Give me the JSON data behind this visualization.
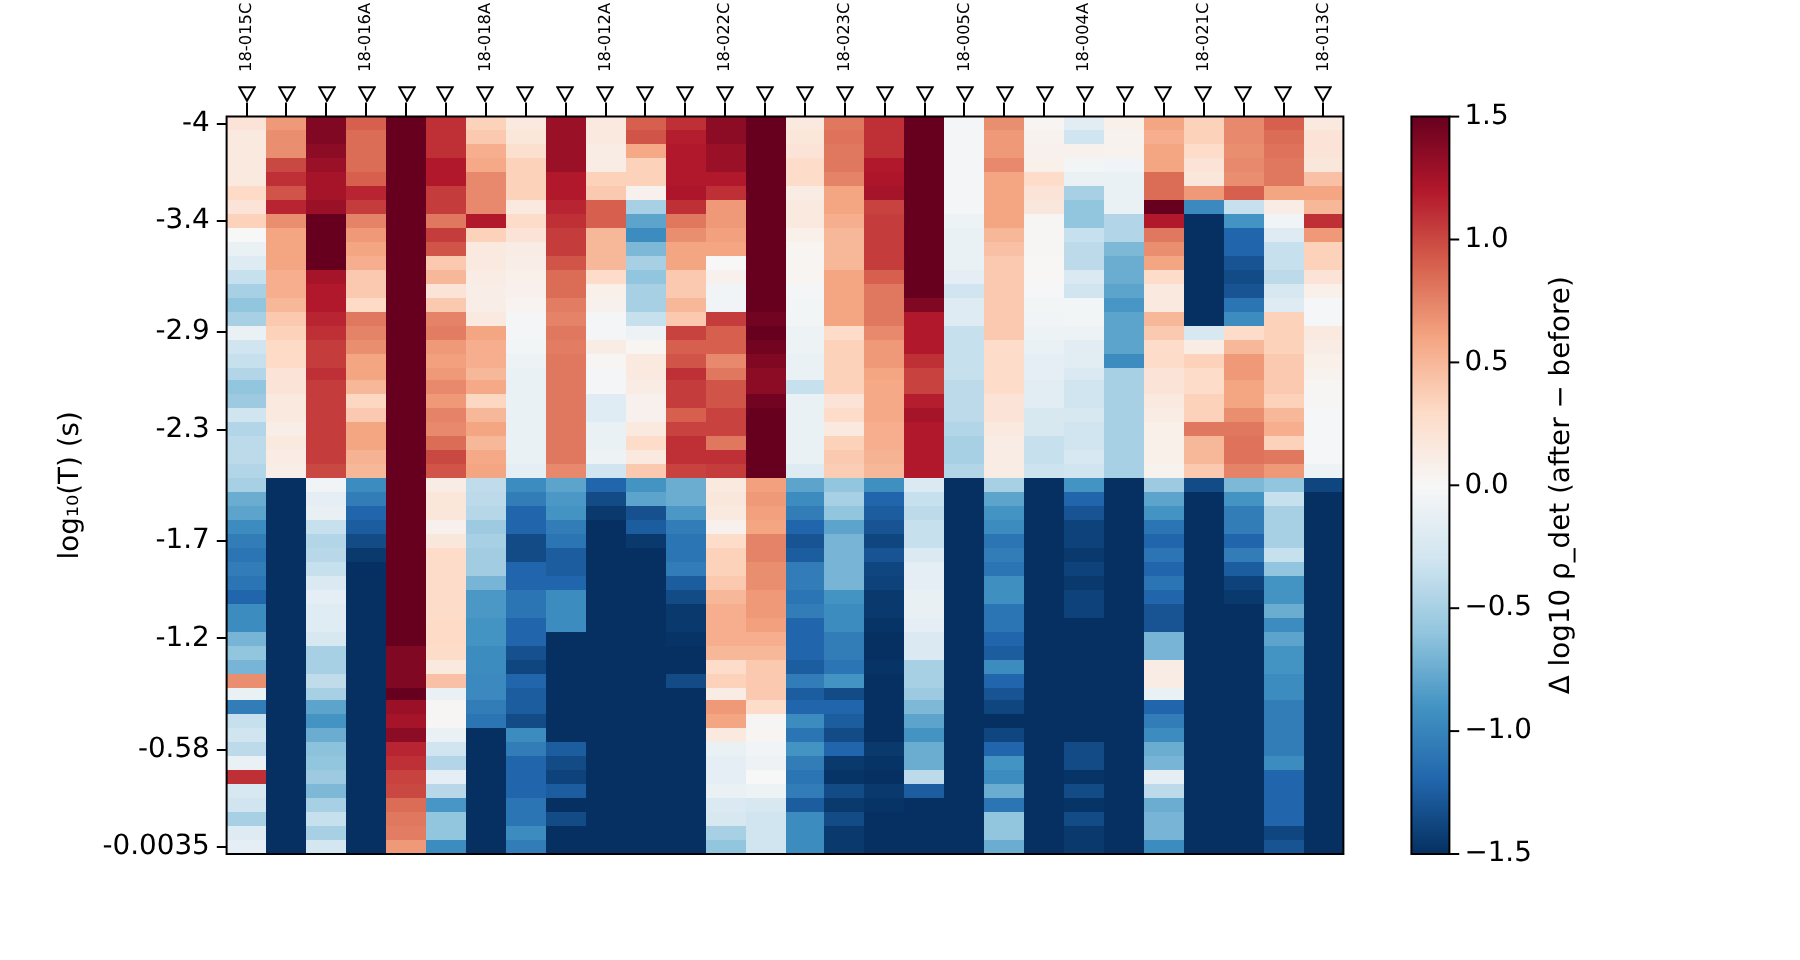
{
  "chart_data": {
    "type": "heatmap",
    "ylabel": "log₁₀(T) (s)",
    "clabel": "Δ log10 ρ_det (after − before)",
    "categories": [
      "18-015C",
      null,
      null,
      "18-016A",
      null,
      null,
      "18-018A",
      null,
      null,
      "18-012A",
      null,
      null,
      "18-022C",
      null,
      null,
      "18-023C",
      null,
      null,
      "18-005C",
      null,
      null,
      "18-004A",
      null,
      null,
      "18-021C",
      null,
      null,
      "18-013C"
    ],
    "y_categories": [
      "-4",
      null,
      null,
      null,
      null,
      null,
      null,
      "-3.4",
      null,
      null,
      null,
      null,
      null,
      null,
      null,
      "-2.9",
      null,
      null,
      null,
      null,
      null,
      null,
      "-2.3",
      null,
      null,
      null,
      null,
      null,
      null,
      null,
      "-1.7",
      null,
      null,
      null,
      null,
      null,
      null,
      "-1.2",
      null,
      null,
      null,
      null,
      null,
      null,
      null,
      "-0.58",
      null,
      null,
      null,
      null,
      null,
      null,
      "-0.0035"
    ],
    "clim": [
      -1.5,
      1.5
    ],
    "cticks": [
      {
        "value": -1.5,
        "label": "−1.5"
      },
      {
        "value": -1,
        "label": "−1.0"
      },
      {
        "value": -0.5,
        "label": "−0.5"
      },
      {
        "value": 0,
        "label": "0.0"
      },
      {
        "value": 0.5,
        "label": "0.5"
      },
      {
        "value": 1,
        "label": "1.0"
      },
      {
        "value": 1.5,
        "label": "1.5"
      }
    ],
    "cells": [
      [
        0.2,
        0.65,
        1.4,
        0.9,
        1.5,
        1.1,
        0.35,
        0.15,
        1.3,
        0.15,
        0.9,
        1.1,
        1.35,
        1.5,
        0.15,
        0.8,
        1.1,
        1.5,
        -0.03,
        0.7,
        0.03,
        -0.17,
        0.08,
        0.6,
        0.35,
        0.72,
        0.9,
        0.15
      ],
      [
        0.15,
        0.7,
        1.4,
        0.85,
        1.5,
        1.1,
        0.4,
        0.18,
        1.3,
        0.15,
        0.95,
        1.18,
        1.35,
        1.5,
        0.18,
        0.82,
        1.1,
        1.5,
        -0.03,
        0.65,
        0.05,
        -0.3,
        0.05,
        0.55,
        0.35,
        0.72,
        0.85,
        0.2
      ],
      [
        0.15,
        0.7,
        1.35,
        0.85,
        1.5,
        1.1,
        0.55,
        0.25,
        1.3,
        0.12,
        0.58,
        1.2,
        1.3,
        1.5,
        0.2,
        0.8,
        1.1,
        1.5,
        -0.03,
        0.65,
        0.07,
        0.07,
        0.05,
        0.6,
        0.28,
        0.7,
        0.82,
        0.2
      ],
      [
        0.15,
        1.0,
        1.3,
        0.85,
        1.5,
        1.2,
        0.58,
        0.35,
        1.3,
        0.12,
        0.35,
        1.2,
        1.3,
        1.5,
        0.28,
        0.8,
        1.2,
        1.5,
        -0.03,
        0.72,
        0.08,
        -0.04,
        -0.05,
        0.6,
        0.2,
        0.72,
        0.8,
        0.17
      ],
      [
        0.15,
        1.1,
        1.25,
        0.9,
        1.5,
        1.2,
        0.72,
        0.35,
        1.2,
        0.35,
        0.35,
        1.2,
        1.2,
        1.5,
        0.28,
        0.75,
        1.22,
        1.5,
        -0.03,
        0.6,
        0.28,
        -0.1,
        -0.1,
        0.85,
        0.17,
        0.7,
        0.8,
        0.45
      ],
      [
        0.3,
        0.95,
        1.25,
        1.15,
        1.5,
        1.05,
        0.72,
        0.35,
        1.2,
        0.4,
        0.07,
        1.22,
        1.1,
        1.5,
        0.12,
        0.6,
        1.25,
        1.5,
        -0.03,
        0.6,
        0.2,
        -0.5,
        -0.1,
        0.85,
        0.65,
        0.9,
        0.6,
        0.6
      ],
      [
        0.2,
        1.15,
        1.3,
        1.05,
        1.5,
        1.05,
        0.72,
        0.15,
        1.15,
        0.9,
        -0.5,
        1.1,
        0.65,
        1.5,
        0.15,
        0.6,
        1.02,
        1.5,
        -0.03,
        0.6,
        0.17,
        -0.6,
        -0.1,
        1.5,
        -0.97,
        -0.35,
        0.12,
        0.5
      ],
      [
        0.35,
        0.7,
        1.5,
        0.75,
        1.5,
        0.8,
        1.2,
        0.28,
        1.1,
        0.9,
        -0.8,
        0.8,
        0.65,
        1.5,
        0.15,
        0.55,
        1.05,
        1.5,
        -0.08,
        0.6,
        0.02,
        -0.6,
        -0.45,
        1.2,
        -1.5,
        -0.9,
        -0.05,
        1.1
      ],
      [
        0,
        0.6,
        1.5,
        0.65,
        1.5,
        1.05,
        0.35,
        0.2,
        1.05,
        0.5,
        -0.95,
        0.7,
        0.62,
        1.5,
        0.08,
        0.5,
        1.05,
        1.5,
        -0.1,
        0.5,
        0.02,
        -0.35,
        -0.45,
        0.8,
        -1.5,
        -1.2,
        -0.2,
        0.65
      ],
      [
        -0.1,
        0.6,
        1.5,
        0.6,
        1.5,
        0.95,
        0.15,
        0.12,
        1.05,
        0.5,
        -0.68,
        0.6,
        0.6,
        1.5,
        0.03,
        0.5,
        1.05,
        1.5,
        -0.1,
        0.45,
        0.02,
        -0.4,
        -0.68,
        0.7,
        -1.5,
        -1.2,
        -0.35,
        0.35
      ],
      [
        -0.2,
        0.6,
        1.5,
        0.55,
        1.5,
        0.4,
        0.15,
        0.1,
        0.95,
        0.5,
        -0.5,
        0.6,
        0,
        1.5,
        0.03,
        0.5,
        1.05,
        1.5,
        -0.1,
        0.4,
        0.01,
        -0.4,
        -0.75,
        0.6,
        -1.5,
        -1.3,
        -0.35,
        0.35
      ],
      [
        -0.35,
        0.55,
        1.25,
        0.4,
        1.5,
        0.5,
        0.12,
        0.08,
        0.85,
        0.28,
        -0.6,
        0.4,
        0.07,
        1.5,
        0.03,
        0.6,
        0.9,
        1.5,
        -0.15,
        0.4,
        0.01,
        -0.22,
        -0.75,
        0.28,
        -1.5,
        -1.35,
        -0.4,
        0.2
      ],
      [
        -0.5,
        0.55,
        1.2,
        0.4,
        1.5,
        0.2,
        0.1,
        0.07,
        0.85,
        0.08,
        -0.5,
        0.4,
        -0.05,
        1.5,
        -0.03,
        0.6,
        0.8,
        1.5,
        -0.3,
        0.4,
        -0.02,
        -0.3,
        -0.8,
        0.15,
        -1.5,
        -1.3,
        -0.25,
        0.08
      ],
      [
        -0.6,
        0.5,
        1.2,
        0.3,
        1.5,
        0.4,
        0.1,
        0.04,
        0.78,
        0.07,
        -0.5,
        0.5,
        -0.05,
        1.5,
        -0.04,
        0.6,
        0.8,
        1.4,
        -0.2,
        0.4,
        -0.04,
        -0.04,
        -0.88,
        0.15,
        -1.5,
        -1.1,
        -0.2,
        -0.02
      ],
      [
        -0.5,
        0.4,
        1.15,
        0.8,
        1.5,
        0.75,
        0.15,
        -0.03,
        0.75,
        -0.03,
        -0.35,
        0.4,
        1.05,
        1.45,
        -0.04,
        0.6,
        0.8,
        1.2,
        -0.2,
        0.4,
        -0.05,
        -0.04,
        -0.8,
        0.5,
        -1.5,
        -0.95,
        0.35,
        -0.02
      ],
      [
        -0.1,
        0.35,
        1.1,
        0.75,
        1.5,
        0.78,
        0.6,
        -0.03,
        0.8,
        -0.03,
        -0.08,
        1.02,
        0.9,
        1.5,
        -0.08,
        0.28,
        0.72,
        1.2,
        -0.35,
        0.4,
        -0.08,
        -0.08,
        -0.8,
        0.4,
        -0.25,
        0.28,
        0.35,
        0.15
      ],
      [
        -0.3,
        0.3,
        1.05,
        0.7,
        1.5,
        0.65,
        0.55,
        -0.04,
        0.78,
        0.12,
        0.03,
        0.9,
        0.9,
        1.45,
        -0.08,
        0.35,
        0.65,
        1.2,
        -0.35,
        0.28,
        -0.1,
        -0.17,
        -0.8,
        0.28,
        0.12,
        0.5,
        0.35,
        0.12
      ],
      [
        -0.35,
        0.3,
        1.05,
        0.6,
        1.5,
        0.62,
        0.55,
        -0.08,
        0.8,
        0.02,
        0.15,
        0.95,
        0.72,
        1.4,
        -0.1,
        0.35,
        0.65,
        1.1,
        -0.35,
        0.28,
        -0.15,
        -0.17,
        -0.95,
        0.28,
        0.35,
        0.65,
        0.4,
        0.08
      ],
      [
        -0.45,
        0.2,
        1.1,
        0.6,
        1.5,
        0.65,
        0.5,
        -0.1,
        0.8,
        -0.03,
        0.15,
        1.1,
        0.8,
        1.35,
        -0.1,
        0.35,
        0.6,
        1.02,
        -0.35,
        0.28,
        -0.15,
        -0.22,
        -0.5,
        0.2,
        0.28,
        0.65,
        0.4,
        0.05
      ],
      [
        -0.6,
        0.2,
        1.05,
        0.5,
        1.5,
        0.72,
        0.58,
        -0.1,
        0.8,
        -0.03,
        0.12,
        1.05,
        0.95,
        1.35,
        -0.35,
        0.35,
        0.58,
        1.02,
        -0.4,
        0.28,
        -0.17,
        -0.3,
        -0.5,
        0.2,
        0.28,
        0.6,
        0.4,
        0.02
      ],
      [
        -0.55,
        0.15,
        1.05,
        0.32,
        1.5,
        0.65,
        0.32,
        -0.1,
        0.8,
        -0.18,
        0.07,
        1.05,
        0.95,
        1.45,
        -0.1,
        0.2,
        0.58,
        1.18,
        -0.4,
        0.2,
        -0.17,
        -0.3,
        -0.5,
        0.15,
        0.35,
        0.6,
        0.35,
        0.02
      ],
      [
        -0.3,
        0.15,
        1.05,
        0.4,
        1.5,
        0.75,
        0.5,
        -0.1,
        0.8,
        -0.18,
        0.07,
        0.9,
        1.02,
        1.5,
        -0.1,
        0.28,
        0.58,
        1.25,
        -0.4,
        0.2,
        -0.25,
        -0.25,
        -0.5,
        0.12,
        0.35,
        0.7,
        0.5,
        -0.02
      ],
      [
        -0.45,
        0.1,
        1.05,
        0.6,
        1.5,
        0.72,
        0.6,
        -0.1,
        0.8,
        -0.1,
        0.15,
        1.02,
        1.02,
        1.5,
        -0.1,
        0.15,
        0.55,
        1.2,
        -0.45,
        0.15,
        -0.25,
        -0.3,
        -0.5,
        0.08,
        0.8,
        0.8,
        0.55,
        -0.02
      ],
      [
        -0.4,
        0.15,
        1.05,
        0.6,
        1.5,
        0.85,
        0.5,
        -0.1,
        0.8,
        -0.1,
        0.28,
        1.1,
        0.8,
        1.5,
        -0.1,
        0.35,
        0.55,
        1.2,
        -0.5,
        0.12,
        -0.35,
        -0.3,
        -0.5,
        0.08,
        0.5,
        0.82,
        0.35,
        -0.02
      ],
      [
        -0.4,
        0.12,
        1.05,
        0.52,
        1.5,
        1.0,
        0.58,
        -0.1,
        0.8,
        -0.08,
        0.15,
        1.1,
        1.1,
        1.5,
        -0.1,
        0.4,
        0.52,
        1.2,
        -0.5,
        0.12,
        -0.35,
        -0.25,
        -0.5,
        0.08,
        0.5,
        0.82,
        0.8,
        -0.02
      ],
      [
        -0.45,
        0.1,
        1.0,
        0.5,
        1.5,
        0.95,
        0.6,
        -0.15,
        0.72,
        -0.3,
        0.4,
        1.02,
        1.05,
        1.5,
        -0.2,
        0.38,
        0.5,
        1.2,
        -0.45,
        0.12,
        -0.32,
        -0.3,
        -0.5,
        0.05,
        0.4,
        0.75,
        0.65,
        -0.08
      ],
      [
        -0.5,
        -1.5,
        -0.05,
        -0.95,
        1.5,
        0.12,
        -0.38,
        -0.95,
        -0.8,
        -1.2,
        -0.9,
        -0.75,
        0.15,
        0.62,
        -0.8,
        -0.6,
        -0.93,
        -0.22,
        -1.5,
        -0.5,
        -1.5,
        -0.9,
        -1.5,
        -0.55,
        -1.35,
        -0.68,
        -0.6,
        -1.38
      ],
      [
        -0.75,
        -1.5,
        -0.15,
        -1.05,
        1.5,
        0.18,
        -0.4,
        -1.05,
        -0.87,
        -1.35,
        -0.8,
        -0.75,
        0.17,
        0.65,
        -0.95,
        -0.5,
        -1.2,
        -0.35,
        -1.5,
        -0.8,
        -1.5,
        -1.2,
        -1.5,
        -0.8,
        -1.5,
        -0.9,
        -0.35,
        -1.5
      ],
      [
        -0.8,
        -1.5,
        -0.12,
        -1.2,
        1.5,
        0.18,
        -0.43,
        -1.2,
        -0.9,
        -1.45,
        -1.32,
        -0.87,
        0.15,
        0.62,
        -1.05,
        -0.6,
        -1.25,
        -0.4,
        -1.5,
        -0.9,
        -1.5,
        -1.3,
        -1.5,
        -0.9,
        -1.5,
        -1.05,
        -0.5,
        -1.5
      ],
      [
        -0.95,
        -1.5,
        -0.35,
        -1.25,
        1.5,
        0.07,
        -0.55,
        -1.2,
        -1.05,
        -1.5,
        -1.25,
        -1.05,
        0.07,
        0.6,
        -1.2,
        -0.8,
        -1.3,
        -0.35,
        -1.5,
        -0.95,
        -1.5,
        -1.4,
        -1.5,
        -1.1,
        -1.5,
        -1.05,
        -0.5,
        -1.5
      ],
      [
        -1.05,
        -1.5,
        -0.45,
        -1.35,
        1.5,
        0.17,
        -0.5,
        -1.35,
        -1.1,
        -1.5,
        -1.45,
        -1.1,
        0.28,
        0.75,
        -1.3,
        -0.7,
        -1.38,
        -0.35,
        -1.5,
        -1.1,
        -1.5,
        -1.4,
        -1.5,
        -1.2,
        -1.5,
        -1.2,
        -0.5,
        -1.5
      ],
      [
        -1.1,
        -1.5,
        -0.42,
        -1.45,
        1.5,
        0.28,
        -0.53,
        -1.35,
        -1.25,
        -1.5,
        -1.5,
        -1.1,
        0.35,
        0.75,
        -1.25,
        -0.7,
        -1.3,
        -0.22,
        -1.5,
        -1.05,
        -1.5,
        -1.45,
        -1.5,
        -1.1,
        -1.5,
        -1.05,
        -0.35,
        -1.5
      ],
      [
        -1.05,
        -1.5,
        -0.35,
        -1.5,
        1.5,
        0.28,
        -0.53,
        -1.2,
        -1.25,
        -1.5,
        -1.5,
        -1.05,
        0.35,
        0.7,
        -1.05,
        -0.7,
        -1.38,
        -0.15,
        -1.5,
        -1.1,
        -1.5,
        -1.4,
        -1.5,
        -1.2,
        -1.5,
        -1.25,
        -0.6,
        -1.5
      ],
      [
        -1.1,
        -1.5,
        -0.22,
        -1.5,
        1.5,
        0.28,
        -0.7,
        -1.2,
        -1.2,
        -1.5,
        -1.5,
        -1.25,
        0.4,
        0.7,
        -1.05,
        -0.7,
        -1.4,
        -0.15,
        -1.5,
        -0.93,
        -1.5,
        -1.45,
        -1.5,
        -1.1,
        -1.5,
        -1.4,
        -0.9,
        -1.5
      ],
      [
        -1.2,
        -1.5,
        -0.15,
        -1.5,
        1.5,
        0.28,
        -0.87,
        -1.1,
        -0.95,
        -1.5,
        -1.5,
        -1.35,
        0.5,
        0.65,
        -1.1,
        -0.9,
        -1.45,
        -0.12,
        -1.5,
        -0.93,
        -1.5,
        -1.4,
        -1.5,
        -1.2,
        -1.5,
        -1.45,
        -0.9,
        -1.5
      ],
      [
        -0.95,
        -1.5,
        -0.18,
        -1.5,
        1.5,
        0.28,
        -0.87,
        -1.1,
        -0.95,
        -1.5,
        -1.5,
        -1.45,
        0.55,
        0.65,
        -1.05,
        -0.95,
        -1.45,
        -0.12,
        -1.5,
        -1.1,
        -1.5,
        -1.4,
        -1.5,
        -1.3,
        -1.5,
        -1.5,
        -0.75,
        -1.5
      ],
      [
        -0.95,
        -1.5,
        -0.18,
        -1.5,
        1.5,
        0.3,
        -0.9,
        -1.2,
        -0.95,
        -1.5,
        -1.5,
        -1.45,
        0.55,
        0.62,
        -1.2,
        -0.95,
        -1.48,
        -0.15,
        -1.5,
        -1.1,
        -1.5,
        -1.5,
        -1.5,
        -1.3,
        -1.5,
        -1.5,
        -0.95,
        -1.5
      ],
      [
        -0.7,
        -1.5,
        -0.25,
        -1.5,
        1.5,
        0.3,
        -0.9,
        -1.2,
        -1.5,
        -1.5,
        -1.5,
        -1.48,
        0.55,
        0.55,
        -1.2,
        -1.05,
        -1.5,
        -0.22,
        -1.5,
        -1.2,
        -1.5,
        -1.5,
        -1.5,
        -0.7,
        -1.5,
        -1.5,
        -0.8,
        -1.5
      ],
      [
        -0.6,
        -1.5,
        -0.5,
        -1.5,
        1.4,
        0.28,
        -0.95,
        -1.32,
        -1.5,
        -1.5,
        -1.5,
        -1.5,
        0.5,
        0.5,
        -1.2,
        -1.05,
        -1.5,
        -0.22,
        -1.5,
        -1.25,
        -1.5,
        -1.5,
        -1.5,
        -0.7,
        -1.5,
        -1.5,
        -0.9,
        -1.5
      ],
      [
        -0.7,
        -1.5,
        -0.5,
        -1.5,
        1.4,
        0.15,
        -0.95,
        -1.38,
        -1.5,
        -1.5,
        -1.5,
        -1.5,
        0.28,
        0.4,
        -1.25,
        -1.1,
        -1.48,
        -0.5,
        -1.5,
        -0.95,
        -1.5,
        -1.5,
        -1.5,
        0.12,
        -1.5,
        -1.5,
        -0.9,
        -1.5
      ],
      [
        0.7,
        -1.5,
        -0.38,
        -1.5,
        1.4,
        0.45,
        -0.97,
        -1.2,
        -1.5,
        -1.5,
        -1.5,
        -1.35,
        0.35,
        0.4,
        -1.05,
        -0.9,
        -1.5,
        -0.5,
        -1.5,
        -1.2,
        -1.5,
        -1.5,
        -1.5,
        0.12,
        -1.5,
        -1.5,
        -0.95,
        -1.5
      ],
      [
        -0.1,
        -1.5,
        -0.5,
        -1.5,
        1.5,
        -0.1,
        -0.97,
        -1.25,
        -1.5,
        -1.5,
        -1.5,
        -1.5,
        0.12,
        0.4,
        -1.25,
        -1.35,
        -1.5,
        -0.55,
        -1.5,
        -1.3,
        -1.5,
        -1.5,
        -1.5,
        -0.1,
        -1.5,
        -1.5,
        -0.95,
        -1.5
      ],
      [
        -1.05,
        -1.5,
        -0.8,
        -1.5,
        1.3,
        0.02,
        -1.05,
        -1.25,
        -1.5,
        -1.5,
        -1.5,
        -1.5,
        0.65,
        0.28,
        -1.2,
        -1.2,
        -1.5,
        -0.68,
        -1.5,
        -1.38,
        -1.5,
        -1.5,
        -1.5,
        -1.2,
        -1.5,
        -1.5,
        -1.05,
        -1.5
      ],
      [
        -0.35,
        -1.5,
        -0.9,
        -1.5,
        1.25,
        0.02,
        -1.1,
        -1.35,
        -1.5,
        -1.5,
        -1.5,
        -1.5,
        0.6,
        0.02,
        -0.95,
        -1.25,
        -1.5,
        -0.8,
        -1.5,
        -1.5,
        -1.5,
        -1.5,
        -1.5,
        -1.05,
        -1.5,
        -1.5,
        -1.05,
        -1.5
      ],
      [
        -0.3,
        -1.5,
        -0.75,
        -1.5,
        1.35,
        -0.1,
        -1.5,
        -0.95,
        -1.5,
        -1.5,
        -1.5,
        -1.5,
        0.15,
        0.03,
        -1.1,
        -1.35,
        -1.5,
        -0.9,
        -1.5,
        -1.38,
        -1.5,
        -1.5,
        -1.5,
        -0.95,
        -1.5,
        -1.5,
        -1.05,
        -1.5
      ],
      [
        -0.4,
        -1.5,
        -0.62,
        -1.5,
        1.15,
        -0.3,
        -1.5,
        -1.05,
        -1.25,
        -1.5,
        -1.5,
        -1.5,
        -0.1,
        -0.05,
        -0.9,
        -1.2,
        -1.45,
        -0.75,
        -1.5,
        -1.2,
        -1.5,
        -1.35,
        -1.5,
        -0.75,
        -1.5,
        -1.5,
        -1.05,
        -1.5
      ],
      [
        -0.1,
        -1.5,
        -0.6,
        -1.5,
        1.1,
        -0.45,
        -1.5,
        -1.2,
        -1.35,
        -1.5,
        -1.5,
        -1.5,
        -0.15,
        -0.08,
        -1.05,
        -1.45,
        -1.48,
        -0.75,
        -1.5,
        -0.9,
        -1.5,
        -1.35,
        -1.5,
        -0.7,
        -1.5,
        -1.5,
        -0.95,
        -1.5
      ],
      [
        1.1,
        -1.5,
        -0.55,
        -1.5,
        1.02,
        -0.15,
        -1.5,
        -1.2,
        -1.4,
        -1.5,
        -1.5,
        -1.5,
        -0.15,
        0,
        -1.1,
        -1.48,
        -1.5,
        -0.4,
        -1.5,
        -0.95,
        -1.5,
        -1.48,
        -1.5,
        -0.15,
        -1.5,
        -1.5,
        -1.2,
        -1.5
      ],
      [
        -0.25,
        -1.5,
        -0.68,
        -1.5,
        1.0,
        -0.42,
        -1.5,
        -1.2,
        -1.25,
        -1.5,
        -1.5,
        -1.5,
        -0.1,
        -0.08,
        -1.05,
        -1.35,
        -1.45,
        -1.25,
        -1.5,
        -0.75,
        -1.5,
        -1.35,
        -1.5,
        -0.4,
        -1.5,
        -1.5,
        -1.2,
        -1.5
      ],
      [
        -0.3,
        -1.5,
        -0.5,
        -1.5,
        0.85,
        -0.88,
        -1.5,
        -1.1,
        -1.5,
        -1.5,
        -1.5,
        -1.5,
        -0.22,
        -0.25,
        -1.25,
        -1.45,
        -1.48,
        -1.5,
        -1.5,
        -1.1,
        -1.5,
        -1.48,
        -1.5,
        -0.75,
        -1.5,
        -1.5,
        -1.2,
        -1.5
      ],
      [
        -0.5,
        -1.5,
        -0.35,
        -1.5,
        0.8,
        -0.6,
        -1.5,
        -1.1,
        -1.35,
        -1.5,
        -1.5,
        -1.5,
        -0.25,
        -0.3,
        -0.95,
        -1.35,
        -1.5,
        -1.5,
        -1.5,
        -0.6,
        -1.5,
        -1.35,
        -1.5,
        -0.7,
        -1.5,
        -1.5,
        -1.2,
        -1.5
      ],
      [
        -0.2,
        -1.5,
        -0.5,
        -1.5,
        0.78,
        -0.6,
        -1.5,
        -0.95,
        -1.5,
        -1.5,
        -1.5,
        -1.5,
        -0.5,
        -0.3,
        -0.95,
        -1.45,
        -1.5,
        -1.5,
        -1.5,
        -0.6,
        -1.5,
        -1.45,
        -1.5,
        -0.7,
        -1.5,
        -1.5,
        -1.38,
        -1.5
      ],
      [
        -0.15,
        -1.5,
        -0.28,
        -1.5,
        0.65,
        -0.95,
        -1.5,
        -1.05,
        -1.5,
        -1.5,
        -1.5,
        -1.5,
        -0.6,
        -0.3,
        -0.95,
        -1.45,
        -1.5,
        -1.5,
        -1.5,
        -0.75,
        -1.5,
        -1.45,
        -1.5,
        -0.95,
        -1.5,
        -1.5,
        -1.3,
        -1.5
      ]
    ]
  }
}
